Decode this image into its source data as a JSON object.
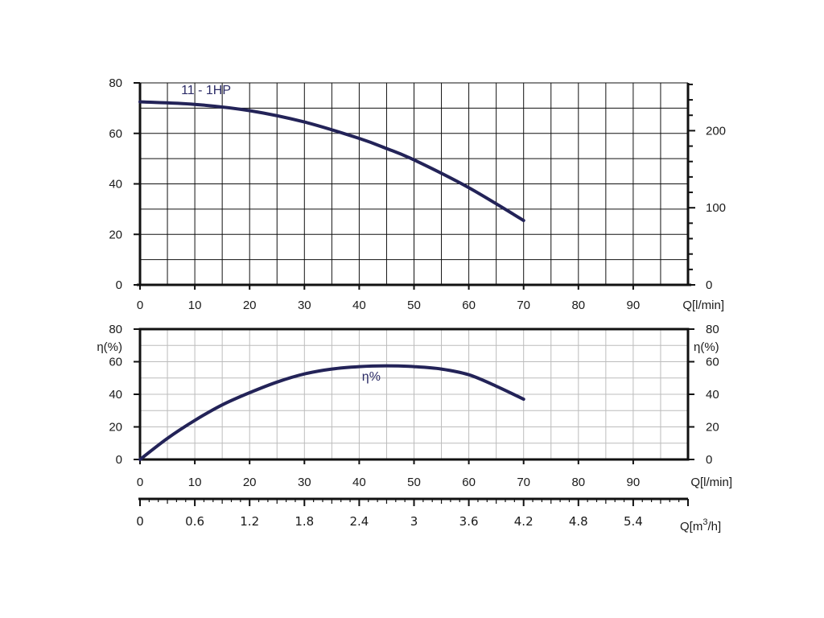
{
  "chart_data": [
    {
      "type": "line",
      "panel": "head",
      "curve_label": "11 - 1HP",
      "x_axis_title": "Q[l/min]",
      "x_ticks": [
        "0",
        "10",
        "20",
        "30",
        "40",
        "50",
        "60",
        "70",
        "80",
        "90"
      ],
      "xlim": [
        0,
        100
      ],
      "y_left_ticks": [
        "0",
        "20",
        "40",
        "60",
        "80"
      ],
      "ylim_left": [
        0,
        80
      ],
      "y_right_ticks": [
        "0",
        "100",
        "200"
      ],
      "ylim_right": [
        0,
        262
      ],
      "grid": true,
      "series": [
        {
          "x": [
            0,
            10,
            20,
            30,
            40,
            45,
            50,
            60,
            70
          ],
          "y": [
            72.5,
            71.5,
            69,
            64.5,
            58,
            54,
            49.5,
            38.5,
            25.5
          ]
        }
      ],
      "color": "#232358"
    },
    {
      "type": "line",
      "panel": "efficiency",
      "curve_label": "η%",
      "y_axis_title_left": "η(%)",
      "y_axis_title_right": "η(%)",
      "x_axis_title": "Q[l/min]",
      "x_ticks": [
        "0",
        "10",
        "20",
        "30",
        "40",
        "50",
        "60",
        "70",
        "80",
        "90"
      ],
      "xlim": [
        0,
        100
      ],
      "y_left_ticks": [
        "0",
        "20",
        "40",
        "60",
        "80"
      ],
      "y_right_ticks": [
        "0",
        "20",
        "40",
        "60",
        "80"
      ],
      "ylim": [
        0,
        80
      ],
      "grid": true,
      "series": [
        {
          "x": [
            0,
            5,
            10,
            15,
            20,
            25,
            30,
            35,
            40,
            45,
            50,
            55,
            60,
            65,
            70
          ],
          "y": [
            0,
            13,
            24,
            33.5,
            41,
            47.5,
            52.5,
            55.5,
            57,
            57.5,
            57,
            55.5,
            52,
            45,
            37
          ]
        }
      ],
      "color": "#232358"
    },
    {
      "type": "axis",
      "panel": "flow-m3h",
      "x_axis_title_main": "Q[m",
      "x_axis_title_sup": "3",
      "x_axis_title_tail": "/h]",
      "x_ticks": [
        "0",
        "0.6",
        "1.2",
        "1.8",
        "2.4",
        "3",
        "3.6",
        "4.2",
        "4.8",
        "5.4"
      ],
      "xlim": [
        0,
        6
      ]
    }
  ]
}
